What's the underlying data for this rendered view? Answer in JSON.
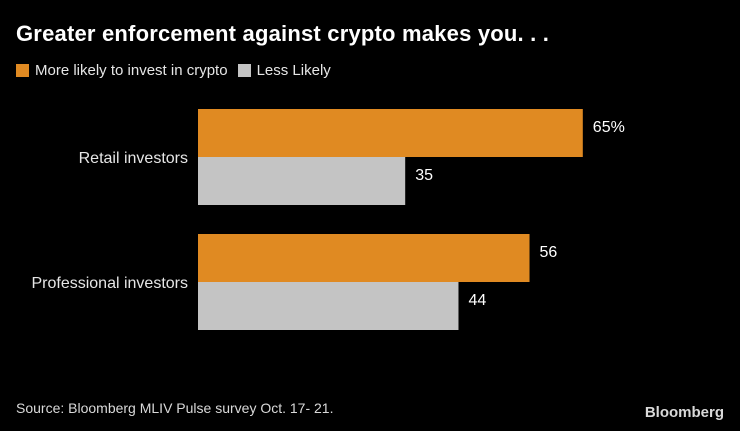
{
  "title": "Greater enforcement against crypto makes you. . .",
  "source": "Source: Bloomberg MLIV Pulse survey Oct. 17- 21.",
  "brand": "Bloomberg",
  "colors": {
    "more_likely": "#E08A22",
    "less_likely": "#C4C4C4",
    "background": "#000000",
    "text": "#FFFFFF"
  },
  "chart_data": {
    "type": "bar",
    "orientation": "horizontal",
    "title": "Greater enforcement against crypto makes you. . .",
    "categories": [
      "Retail investors",
      "Professional investors"
    ],
    "series": [
      {
        "name": "More likely to invest in crypto",
        "values": [
          65,
          56
        ],
        "labels": [
          "65%",
          "56"
        ],
        "color": "#E08A22"
      },
      {
        "name": "Less Likely",
        "values": [
          35,
          44
        ],
        "labels": [
          "35",
          "44"
        ],
        "color": "#C4C4C4"
      }
    ],
    "xlabel": "",
    "ylabel": "",
    "xlim": [
      0,
      65
    ],
    "grid": false,
    "legend": "top-left"
  }
}
